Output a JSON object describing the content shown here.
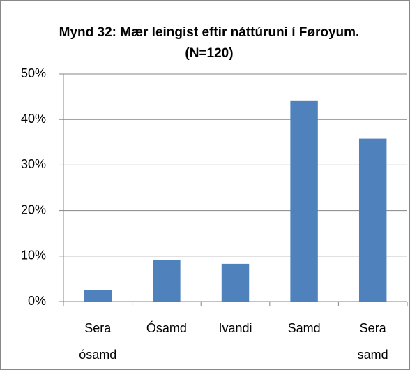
{
  "chart_data": {
    "type": "bar",
    "title": "Mynd 32: Mær leingist eftir náttúruni í Føroyum. (N=120)",
    "categories": [
      "Sera ósamd",
      "Ósamd",
      "Ivandi",
      "Samd",
      "Sera samd"
    ],
    "values": [
      2.5,
      9.2,
      8.3,
      44.2,
      35.8
    ],
    "color": "#4f81bd",
    "ylim": [
      0,
      50
    ],
    "yticks": [
      {
        "value": 0,
        "label": "0%"
      },
      {
        "value": 10,
        "label": "10%"
      },
      {
        "value": 20,
        "label": "20%"
      },
      {
        "value": 30,
        "label": "30%"
      },
      {
        "value": 40,
        "label": "40%"
      },
      {
        "value": 50,
        "label": "50%"
      }
    ],
    "grid": true
  }
}
